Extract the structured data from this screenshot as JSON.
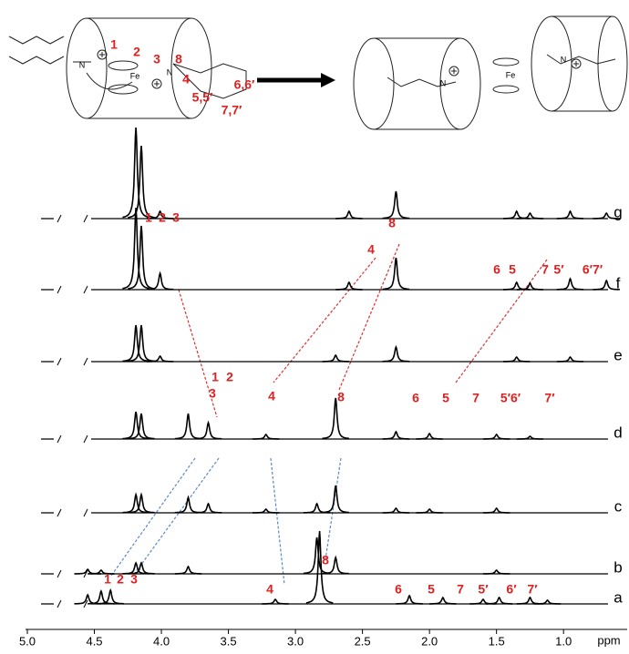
{
  "chart_data": {
    "type": "nmr-stack",
    "x_label": "ppm",
    "xlim": [
      5.0,
      0.6
    ],
    "xticks": [
      {
        "value": 5,
        "label": "5.0"
      },
      {
        "value": 4.5,
        "label": "4.5"
      },
      {
        "value": 4,
        "label": "4.0"
      },
      {
        "value": 3.5,
        "label": "3.5"
      },
      {
        "value": 3,
        "label": "3.0"
      },
      {
        "value": 2.5,
        "label": "2.5"
      },
      {
        "value": 2,
        "label": "2.0"
      },
      {
        "value": 1.5,
        "label": "1.5"
      },
      {
        "value": 1,
        "label": "1.0"
      }
    ],
    "series": [
      {
        "name": "g",
        "color": "#000000",
        "x": [
          4.19,
          4.15,
          4.01,
          2.6,
          2.25,
          1.35,
          1.25,
          0.95,
          0.68
        ],
        "values": [
          100,
          80,
          8,
          8,
          30,
          8,
          6,
          8,
          6
        ]
      },
      {
        "name": "f",
        "color": "#000000",
        "x": [
          4.19,
          4.15,
          4.01,
          2.6,
          2.25,
          1.35,
          1.25,
          0.95,
          0.68
        ],
        "values": [
          90,
          70,
          18,
          8,
          35,
          8,
          7,
          12,
          10
        ]
      },
      {
        "name": "e",
        "color": "#000000",
        "x": [
          4.19,
          4.15,
          4.01,
          2.7,
          2.25,
          1.35,
          0.95
        ],
        "values": [
          40,
          40,
          6,
          7,
          16,
          5,
          5
        ]
      },
      {
        "name": "d",
        "color": "#000000",
        "x": [
          4.19,
          4.15,
          3.8,
          3.65,
          3.22,
          2.7,
          2.25,
          2.0,
          1.5,
          1.25
        ],
        "values": [
          30,
          28,
          28,
          18,
          5,
          45,
          8,
          6,
          5,
          3
        ]
      },
      {
        "name": "c",
        "color": "#000000",
        "x": [
          4.19,
          4.15,
          3.8,
          3.65,
          3.22,
          2.84,
          2.7,
          2.25,
          2.0,
          1.5
        ],
        "values": [
          20,
          20,
          17,
          10,
          4,
          10,
          30,
          5,
          4,
          5
        ]
      },
      {
        "name": "b",
        "color": "#000000",
        "x": [
          4.55,
          4.45,
          4.19,
          4.15,
          3.8,
          2.84,
          2.7,
          1.5
        ],
        "values": [
          5,
          4,
          12,
          12,
          8,
          40,
          18,
          4
        ]
      },
      {
        "name": "a",
        "color": "#000000",
        "x": [
          4.55,
          4.45,
          4.38,
          3.15,
          2.82,
          2.15,
          1.9,
          1.6,
          1.48,
          1.25,
          1.12
        ],
        "values": [
          10,
          14,
          15,
          5,
          80,
          9,
          7,
          5,
          7,
          7,
          4
        ]
      }
    ],
    "annotation_color": "#e02020",
    "annotations": [
      "1",
      "2",
      "3",
      "4",
      "8",
      "6",
      "5",
      "7",
      "5′",
      "6′7′",
      "1",
      "2",
      "3",
      "4",
      "8",
      "6",
      "5",
      "7",
      "5′6′",
      "7′",
      "1",
      "2",
      "3",
      "4",
      "8",
      "6",
      "5",
      "7",
      "5′",
      "6′",
      "7′"
    ]
  },
  "diagram": {
    "labels": [
      "1",
      "2",
      "3",
      "8",
      "4",
      "6,6′",
      "5,5′",
      "7,7′"
    ],
    "atoms_left": [
      "N",
      "Fe",
      "N"
    ],
    "atoms_right": [
      "N",
      "Fe",
      "N"
    ]
  }
}
